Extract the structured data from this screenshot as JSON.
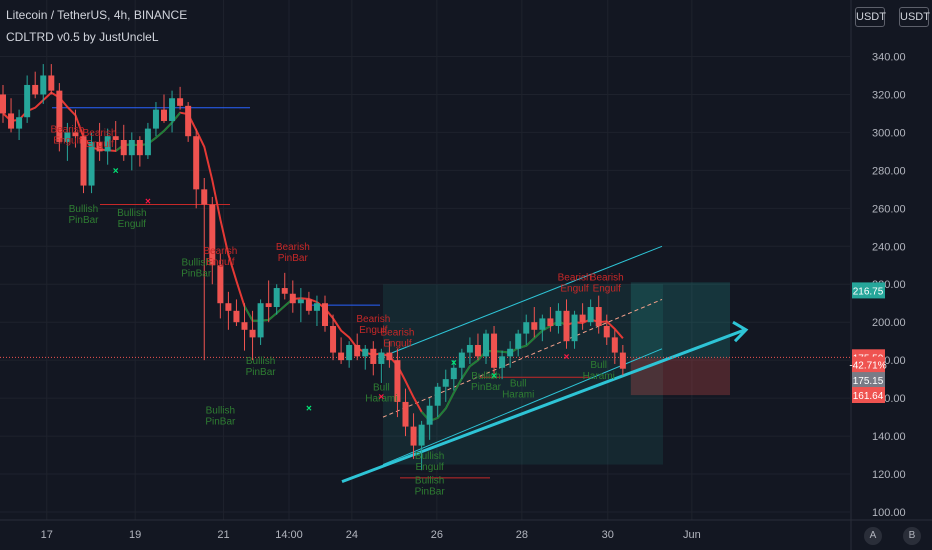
{
  "header": {
    "symbol_line": "Litecoin / TetherUS, 4h, BINANCE",
    "indicator_line": "CDLTRD v0.5 by JustUncleL"
  },
  "scale_buttons": {
    "usdt_left": "USDT",
    "usdt_right": "USDT"
  },
  "corner_buttons": {
    "auto": "A",
    "log": "B"
  },
  "colors": {
    "background": "#131722",
    "grid": "#1e222d",
    "bull": "#26a69a",
    "bear": "#ef5350",
    "bull_engulf": "#00e676",
    "ma": "#e53935",
    "ma_green": "#1b7f3a",
    "channel": "#2ec4d6",
    "text_bear": "#c62828",
    "text_bull": "#2e7d32",
    "x_green": "#00e676",
    "x_red": "#ff1744"
  },
  "chart_data": {
    "type": "candlestick",
    "ylim": [
      100,
      345
    ],
    "y_ticks": [
      100,
      120,
      140,
      160,
      180,
      200,
      220,
      240,
      260,
      280,
      300,
      320,
      340
    ],
    "y_tick_labels": [
      "100.00",
      "120.00",
      "140.00",
      "160.00",
      "180.00",
      "200.00",
      "220.00",
      "240.00",
      "260.00",
      "280.00",
      "300.00",
      "320.00",
      "340.00"
    ],
    "x_labels": [
      {
        "label": "17",
        "t": 0.055
      },
      {
        "label": "19",
        "t": 0.159
      },
      {
        "label": "21",
        "t": 0.263
      },
      {
        "label": "14:00",
        "t": 0.34
      },
      {
        "label": "24",
        "t": 0.414
      },
      {
        "label": "26",
        "t": 0.514
      },
      {
        "label": "28",
        "t": 0.614
      },
      {
        "label": "30",
        "t": 0.715
      },
      {
        "label": "Jun",
        "t": 0.814
      }
    ],
    "price_tags": [
      {
        "label": "216.75",
        "value": 216.75,
        "color": "#26a69a"
      },
      {
        "label": "175.50",
        "value": 181.5,
        "color": "#ef5350"
      },
      {
        "label": "-42.71%",
        "value": 177.6,
        "color": "#ef5350"
      },
      {
        "label": "175.15",
        "value": 169.5,
        "color": "#787b86"
      },
      {
        "label": "161.64",
        "value": 161.64,
        "color": "#ef5350"
      }
    ],
    "last_price": 175.5,
    "candles": [
      [
        320,
        325,
        305,
        310
      ],
      [
        310,
        318,
        300,
        302
      ],
      [
        302,
        312,
        296,
        308
      ],
      [
        308,
        330,
        305,
        325
      ],
      [
        325,
        332,
        318,
        320
      ],
      [
        320,
        336,
        315,
        330
      ],
      [
        330,
        336,
        320,
        322
      ],
      [
        322,
        326,
        290,
        295
      ],
      [
        295,
        305,
        285,
        300
      ],
      [
        300,
        312,
        292,
        298
      ],
      [
        298,
        302,
        268,
        272
      ],
      [
        272,
        300,
        268,
        295
      ],
      [
        295,
        305,
        285,
        290
      ],
      [
        290,
        302,
        283,
        298
      ],
      [
        298,
        306,
        290,
        296
      ],
      [
        296,
        304,
        285,
        288
      ],
      [
        288,
        300,
        280,
        296
      ],
      [
        296,
        298,
        282,
        288
      ],
      [
        288,
        305,
        286,
        302
      ],
      [
        302,
        316,
        298,
        312
      ],
      [
        312,
        320,
        305,
        306
      ],
      [
        306,
        322,
        300,
        318
      ],
      [
        318,
        324,
        312,
        314
      ],
      [
        314,
        316,
        295,
        298
      ],
      [
        298,
        302,
        260,
        270
      ],
      [
        270,
        276,
        180,
        262
      ],
      [
        262,
        266,
        220,
        230
      ],
      [
        230,
        236,
        202,
        210
      ],
      [
        210,
        216,
        196,
        206
      ],
      [
        206,
        212,
        198,
        200
      ],
      [
        200,
        210,
        185,
        196
      ],
      [
        196,
        206,
        180,
        192
      ],
      [
        192,
        212,
        188,
        210
      ],
      [
        210,
        222,
        200,
        208
      ],
      [
        208,
        220,
        204,
        218
      ],
      [
        218,
        226,
        212,
        215
      ],
      [
        215,
        222,
        205,
        210
      ],
      [
        210,
        218,
        200,
        212
      ],
      [
        212,
        216,
        204,
        206
      ],
      [
        206,
        214,
        198,
        210
      ],
      [
        210,
        214,
        195,
        198
      ],
      [
        198,
        204,
        180,
        184
      ],
      [
        184,
        192,
        178,
        180
      ],
      [
        180,
        190,
        176,
        188
      ],
      [
        188,
        194,
        180,
        182
      ],
      [
        182,
        188,
        175,
        186
      ],
      [
        186,
        190,
        172,
        178
      ],
      [
        178,
        186,
        168,
        184
      ],
      [
        184,
        190,
        176,
        180
      ],
      [
        180,
        186,
        150,
        158
      ],
      [
        158,
        165,
        140,
        145
      ],
      [
        145,
        152,
        128,
        135
      ],
      [
        135,
        148,
        122,
        146
      ],
      [
        146,
        160,
        138,
        156
      ],
      [
        156,
        168,
        150,
        166
      ],
      [
        166,
        175,
        158,
        170
      ],
      [
        170,
        180,
        164,
        176
      ],
      [
        176,
        186,
        170,
        184
      ],
      [
        184,
        192,
        178,
        188
      ],
      [
        188,
        194,
        180,
        182
      ],
      [
        182,
        196,
        178,
        194
      ],
      [
        194,
        198,
        172,
        176
      ],
      [
        176,
        185,
        170,
        182
      ],
      [
        182,
        190,
        176,
        186
      ],
      [
        186,
        196,
        182,
        194
      ],
      [
        194,
        204,
        188,
        200
      ],
      [
        200,
        208,
        192,
        196
      ],
      [
        196,
        204,
        190,
        202
      ],
      [
        202,
        208,
        195,
        198
      ],
      [
        198,
        210,
        194,
        206
      ],
      [
        206,
        212,
        186,
        190
      ],
      [
        190,
        206,
        186,
        204
      ],
      [
        204,
        210,
        196,
        200
      ],
      [
        200,
        212,
        198,
        208
      ],
      [
        208,
        214,
        194,
        198
      ],
      [
        198,
        204,
        188,
        192
      ],
      [
        192,
        196,
        178,
        184
      ],
      [
        184,
        188,
        172,
        175.5
      ]
    ],
    "annotations": [
      {
        "text": "Bearish Engulf",
        "idx": 8,
        "value": 300,
        "kind": "bear"
      },
      {
        "text": "Bearish Engulf",
        "idx": 12,
        "value": 298,
        "kind": "bear"
      },
      {
        "text": "Bullish PinBar",
        "idx": 10,
        "value": 258,
        "kind": "bull"
      },
      {
        "text": "Bullish Engulf",
        "idx": 16,
        "value": 256,
        "kind": "bull"
      },
      {
        "text": "Bullish PinBar",
        "idx": 24,
        "value": 230,
        "kind": "bull"
      },
      {
        "text": "Bearish Engulf",
        "idx": 27,
        "value": 236,
        "kind": "bear"
      },
      {
        "text": "Bearish PinBar",
        "idx": 36,
        "value": 238,
        "kind": "bear"
      },
      {
        "text": "Bullish PinBar",
        "idx": 32,
        "value": 178,
        "kind": "bull"
      },
      {
        "text": "Bullish PinBar",
        "idx": 27,
        "value": 152,
        "kind": "bull"
      },
      {
        "text": "Bearish Engulf",
        "idx": 46,
        "value": 200,
        "kind": "bear"
      },
      {
        "text": "Bearish Engulf",
        "idx": 49,
        "value": 193,
        "kind": "bear"
      },
      {
        "text": "Bull Harami",
        "idx": 47,
        "value": 164,
        "kind": "bull"
      },
      {
        "text": "Bullish Engulf",
        "idx": 53,
        "value": 128,
        "kind": "bull"
      },
      {
        "text": "Bullish PinBar",
        "idx": 53,
        "value": 115,
        "kind": "bull"
      },
      {
        "text": "Bullish PinBar",
        "idx": 60,
        "value": 170,
        "kind": "bull"
      },
      {
        "text": "Bull Harami",
        "idx": 64,
        "value": 166,
        "kind": "bull"
      },
      {
        "text": "Bearish Engulf",
        "idx": 71,
        "value": 222,
        "kind": "bear"
      },
      {
        "text": "Bearish Engulf",
        "idx": 75,
        "value": 222,
        "kind": "bear"
      },
      {
        "text": "Bull Harami",
        "idx": 74,
        "value": 176,
        "kind": "bull"
      }
    ]
  }
}
